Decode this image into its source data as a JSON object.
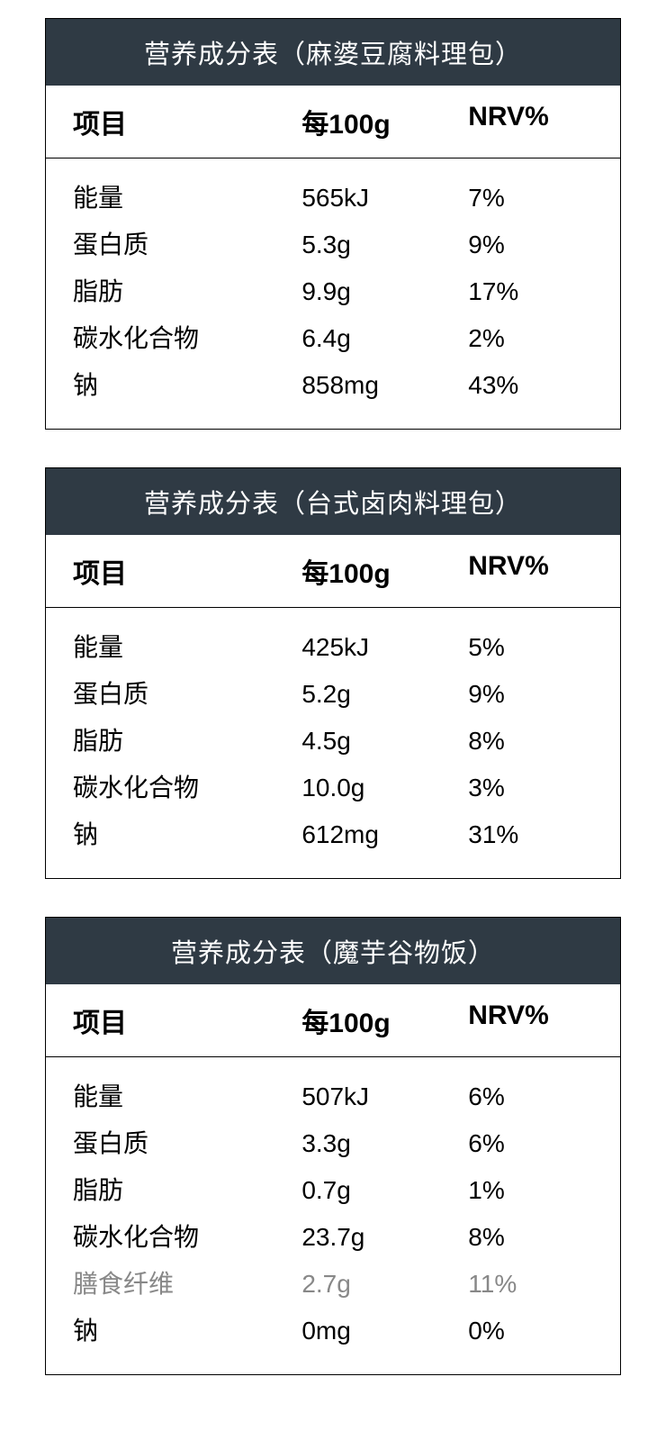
{
  "tables": [
    {
      "title": "营养成分表（麻婆豆腐料理包）",
      "headers": [
        "项目",
        "每100g",
        "NRV%"
      ],
      "rows": [
        {
          "label": "能量",
          "value": "565kJ",
          "nrv": "7%",
          "light": false
        },
        {
          "label": "蛋白质",
          "value": "5.3g",
          "nrv": "9%",
          "light": false
        },
        {
          "label": "脂肪",
          "value": "9.9g",
          "nrv": "17%",
          "light": false
        },
        {
          "label": "碳水化合物",
          "value": "6.4g",
          "nrv": "2%",
          "light": false
        },
        {
          "label": "钠",
          "value": "858mg",
          "nrv": "43%",
          "light": false
        }
      ]
    },
    {
      "title": "营养成分表（台式卤肉料理包）",
      "headers": [
        "项目",
        "每100g",
        "NRV%"
      ],
      "rows": [
        {
          "label": "能量",
          "value": "425kJ",
          "nrv": "5%",
          "light": false
        },
        {
          "label": "蛋白质",
          "value": "5.2g",
          "nrv": "9%",
          "light": false
        },
        {
          "label": "脂肪",
          "value": "4.5g",
          "nrv": "8%",
          "light": false
        },
        {
          "label": "碳水化合物",
          "value": "10.0g",
          "nrv": "3%",
          "light": false
        },
        {
          "label": "钠",
          "value": "612mg",
          "nrv": "31%",
          "light": false
        }
      ]
    },
    {
      "title": "营养成分表（魔芋谷物饭）",
      "headers": [
        "项目",
        "每100g",
        "NRV%"
      ],
      "rows": [
        {
          "label": "能量",
          "value": "507kJ",
          "nrv": "6%",
          "light": false
        },
        {
          "label": "蛋白质",
          "value": "3.3g",
          "nrv": "6%",
          "light": false
        },
        {
          "label": "脂肪",
          "value": "0.7g",
          "nrv": "1%",
          "light": false
        },
        {
          "label": "碳水化合物",
          "value": "23.7g",
          "nrv": "8%",
          "light": false
        },
        {
          "label": "膳食纤维",
          "value": "2.7g",
          "nrv": "11%",
          "light": true
        },
        {
          "label": "钠",
          "value": "0mg",
          "nrv": "0%",
          "light": false
        }
      ]
    }
  ],
  "styling": {
    "header_bg_color": "#2f3a44",
    "header_text_color": "#ffffff",
    "border_color": "#000000",
    "background_color": "#ffffff",
    "title_fontsize": 29,
    "header_fontsize": 30,
    "data_fontsize": 28,
    "light_text_color": "#888888"
  }
}
